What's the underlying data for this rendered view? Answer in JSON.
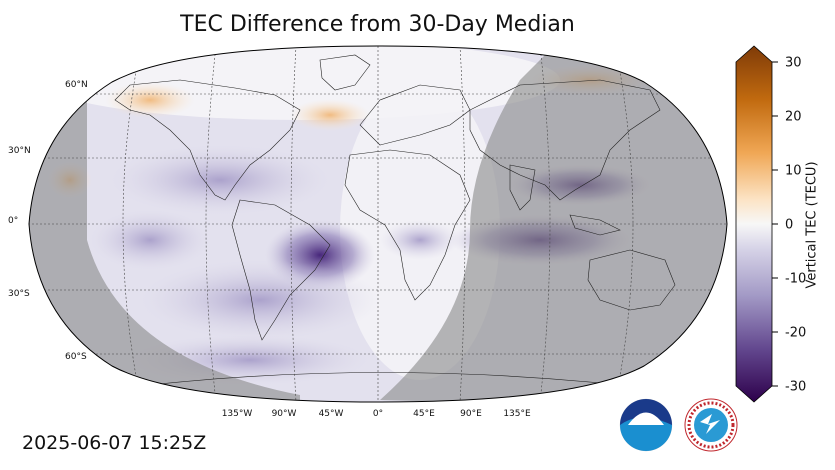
{
  "title": "TEC Difference from 30-Day Median",
  "timestamp": "2025-06-07 15:25Z",
  "colorbar": {
    "label": "Vertical TEC (TECU)",
    "ticks": [
      "30",
      "20",
      "10",
      "0",
      "-10",
      "-20",
      "-30"
    ],
    "range": [
      -30,
      30
    ],
    "colors_high": "#7f3b08",
    "colors_mid": "#f7f7f7",
    "colors_low": "#2d004b"
  },
  "map": {
    "projection": "Robinson",
    "lat_labels": [
      "60°N",
      "30°N",
      "0°",
      "30°S",
      "60°S"
    ],
    "lon_labels": [
      "135°W",
      "90°W",
      "45°W",
      "0°",
      "45°E",
      "90°E",
      "135°E"
    ],
    "night_shading": true,
    "day_region": "Americas / Atlantic / Africa (sunlit)"
  },
  "logos": {
    "noaa": "NOAA",
    "nws": "NATIONAL WEATHER SERVICE"
  }
}
